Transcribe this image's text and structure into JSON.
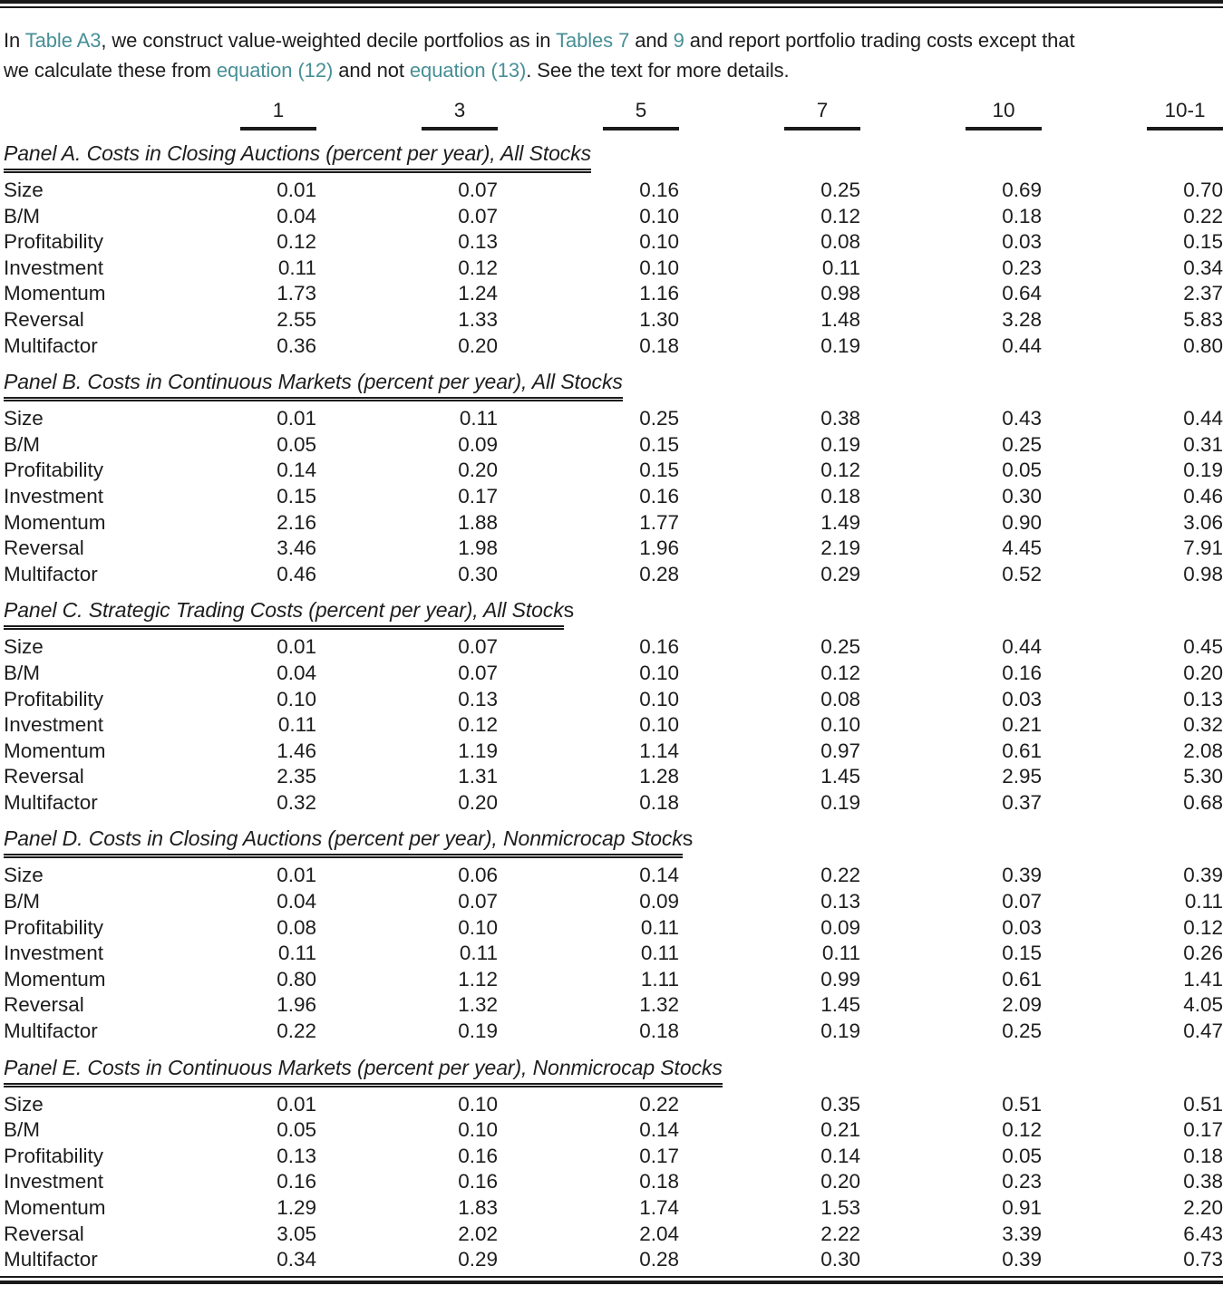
{
  "colors": {
    "link": "#478f96",
    "text": "#1d1d1d",
    "rule": "#1a1a1a"
  },
  "caption": {
    "lines": [
      [
        {
          "text": "In ",
          "link": false
        },
        {
          "text": "Table A3",
          "link": true,
          "name": "table-a3"
        },
        {
          "text": ", we construct value-weighted decile portfolios as in ",
          "link": false
        },
        {
          "text": "Tables 7",
          "link": true,
          "name": "table-7"
        },
        {
          "text": " and ",
          "link": false
        },
        {
          "text": "9",
          "link": true,
          "name": "table-9"
        },
        {
          "text": " and report portfolio trading costs except that",
          "link": false
        }
      ],
      [
        {
          "text": "we calculate these from ",
          "link": false
        },
        {
          "text": "equation (12)",
          "link": true,
          "name": "equation-12"
        },
        {
          "text": " and not ",
          "link": false
        },
        {
          "text": "equation (13)",
          "link": true,
          "name": "equation-13"
        },
        {
          "text": ". See the text for more details.",
          "link": false
        }
      ]
    ]
  },
  "columns": [
    "1",
    "3",
    "5",
    "7",
    "10",
    "10-1"
  ],
  "row_labels": [
    "Size",
    "B/M",
    "Profitability",
    "Investment",
    "Momentum",
    "Reversal",
    "Multifactor"
  ],
  "panels": [
    {
      "id": "a",
      "title_italic": "Panel A. Costs in Closing Auctions (percent per year), All Stocks",
      "title_suffix": "",
      "rows": [
        [
          "0.01",
          "0.07",
          "0.16",
          "0.25",
          "0.69",
          "0.70"
        ],
        [
          "0.04",
          "0.07",
          "0.10",
          "0.12",
          "0.18",
          "0.22"
        ],
        [
          "0.12",
          "0.13",
          "0.10",
          "0.08",
          "0.03",
          "0.15"
        ],
        [
          "0.11",
          "0.12",
          "0.10",
          "0.11",
          "0.23",
          "0.34"
        ],
        [
          "1.73",
          "1.24",
          "1.16",
          "0.98",
          "0.64",
          "2.37"
        ],
        [
          "2.55",
          "1.33",
          "1.30",
          "1.48",
          "3.28",
          "5.83"
        ],
        [
          "0.36",
          "0.20",
          "0.18",
          "0.19",
          "0.44",
          "0.80"
        ]
      ]
    },
    {
      "id": "b",
      "title_italic": "Panel B. Costs in Continuous Markets (percent per year), All Stocks",
      "title_suffix": "",
      "rows": [
        [
          "0.01",
          "0.11",
          "0.25",
          "0.38",
          "0.43",
          "0.44"
        ],
        [
          "0.05",
          "0.09",
          "0.15",
          "0.19",
          "0.25",
          "0.31"
        ],
        [
          "0.14",
          "0.20",
          "0.15",
          "0.12",
          "0.05",
          "0.19"
        ],
        [
          "0.15",
          "0.17",
          "0.16",
          "0.18",
          "0.30",
          "0.46"
        ],
        [
          "2.16",
          "1.88",
          "1.77",
          "1.49",
          "0.90",
          "3.06"
        ],
        [
          "3.46",
          "1.98",
          "1.96",
          "2.19",
          "4.45",
          "7.91"
        ],
        [
          "0.46",
          "0.30",
          "0.28",
          "0.29",
          "0.52",
          "0.98"
        ]
      ]
    },
    {
      "id": "c",
      "title_italic": "Panel C. Strategic Trading Costs (percent per year), All Stock",
      "title_suffix": "s",
      "rows": [
        [
          "0.01",
          "0.07",
          "0.16",
          "0.25",
          "0.44",
          "0.45"
        ],
        [
          "0.04",
          "0.07",
          "0.10",
          "0.12",
          "0.16",
          "0.20"
        ],
        [
          "0.10",
          "0.13",
          "0.10",
          "0.08",
          "0.03",
          "0.13"
        ],
        [
          "0.11",
          "0.12",
          "0.10",
          "0.10",
          "0.21",
          "0.32"
        ],
        [
          "1.46",
          "1.19",
          "1.14",
          "0.97",
          "0.61",
          "2.08"
        ],
        [
          "2.35",
          "1.31",
          "1.28",
          "1.45",
          "2.95",
          "5.30"
        ],
        [
          "0.32",
          "0.20",
          "0.18",
          "0.19",
          "0.37",
          "0.68"
        ]
      ]
    },
    {
      "id": "d",
      "title_italic": "Panel D. Costs in Closing Auctions (percent per year), Nonmicrocap Stock",
      "title_suffix": "s",
      "rows": [
        [
          "0.01",
          "0.06",
          "0.14",
          "0.22",
          "0.39",
          "0.39"
        ],
        [
          "0.04",
          "0.07",
          "0.09",
          "0.13",
          "0.07",
          "0.11"
        ],
        [
          "0.08",
          "0.10",
          "0.11",
          "0.09",
          "0.03",
          "0.12"
        ],
        [
          "0.11",
          "0.11",
          "0.11",
          "0.11",
          "0.15",
          "0.26"
        ],
        [
          "0.80",
          "1.12",
          "1.11",
          "0.99",
          "0.61",
          "1.41"
        ],
        [
          "1.96",
          "1.32",
          "1.32",
          "1.45",
          "2.09",
          "4.05"
        ],
        [
          "0.22",
          "0.19",
          "0.18",
          "0.19",
          "0.25",
          "0.47"
        ]
      ]
    },
    {
      "id": "e",
      "title_italic": "Panel E. Costs in Continuous Markets (percent per year), Nonmicrocap Stocks",
      "title_suffix": "",
      "rows": [
        [
          "0.01",
          "0.10",
          "0.22",
          "0.35",
          "0.51",
          "0.51"
        ],
        [
          "0.05",
          "0.10",
          "0.14",
          "0.21",
          "0.12",
          "0.17"
        ],
        [
          "0.13",
          "0.16",
          "0.17",
          "0.14",
          "0.05",
          "0.18"
        ],
        [
          "0.16",
          "0.16",
          "0.18",
          "0.20",
          "0.23",
          "0.38"
        ],
        [
          "1.29",
          "1.83",
          "1.74",
          "1.53",
          "0.91",
          "2.20"
        ],
        [
          "3.05",
          "2.02",
          "2.04",
          "2.22",
          "3.39",
          "6.43"
        ],
        [
          "0.34",
          "0.29",
          "0.28",
          "0.30",
          "0.39",
          "0.73"
        ]
      ]
    }
  ]
}
